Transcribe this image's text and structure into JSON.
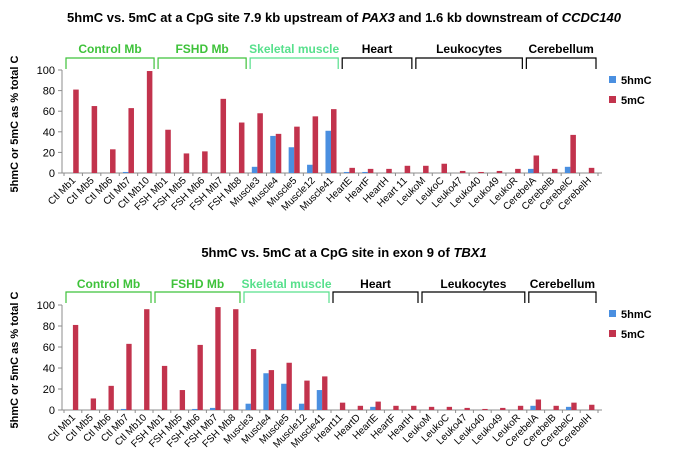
{
  "colors": {
    "h5mc": "#4a8fe0",
    "c5mc": "#c2334d",
    "axis": "#8c8c8c",
    "green_group": "#3ec23a",
    "light_green_group": "#57e08c",
    "black_group": "#000000"
  },
  "legend": {
    "h5mc": "5hmC",
    "c5mc": "5mC"
  },
  "chart_data": [
    {
      "type": "bar",
      "title": {
        "pre": "5hmC vs. 5mC at a CpG site 7.9 kb upstream  of ",
        "gene1": "PAX3",
        "mid": " and 1.6 kb downstream of ",
        "gene2": "CCDC140"
      },
      "ylabel": "5hmC or 5mC as % total C",
      "ylim": [
        0,
        100
      ],
      "yticks": [
        0,
        20,
        40,
        60,
        80,
        100
      ],
      "categories": [
        "Ctl Mb1",
        "Ctl Mb5",
        "Ctl Mb6",
        "Ctl Mb7",
        "Ctl Mb10",
        "FSH Mb1",
        "FSH Mb5",
        "FSH Mb6",
        "FSH Mb7",
        "FSH Mb8",
        "Muscle3",
        "Muscle4",
        "Muscle5",
        "Muscle12",
        "Muscle41",
        "HeartE",
        "HeartF",
        "HeartH",
        "Heart 11",
        "LeukoM",
        "LeukoC",
        "Leuko47",
        "Leuko40",
        "Leuko49",
        "LeukoR",
        "CerebelA",
        "CerebelB",
        "CerebelC",
        "CerebelH"
      ],
      "series": [
        {
          "name": "5hmC",
          "values": [
            0,
            0,
            0,
            1,
            0,
            0,
            0,
            0,
            0,
            0,
            6,
            36,
            25,
            8,
            41,
            1,
            1,
            0,
            0,
            0,
            0,
            0,
            0,
            0,
            0,
            4,
            0,
            6,
            0
          ]
        },
        {
          "name": "5mC",
          "values": [
            81,
            65,
            23,
            63,
            99,
            42,
            19,
            21,
            72,
            49,
            58,
            38,
            45,
            55,
            62,
            5,
            4,
            4,
            7,
            7,
            9,
            2,
            1,
            2,
            4,
            17,
            4,
            37,
            5
          ]
        }
      ],
      "groups": [
        {
          "label": "Control Mb",
          "color": "green",
          "from": 0,
          "to": 4
        },
        {
          "label": "FSHD Mb",
          "color": "green",
          "from": 5,
          "to": 9
        },
        {
          "label": "Skeletal muscle",
          "color": "light",
          "from": 10,
          "to": 14
        },
        {
          "label": "Heart",
          "color": "black",
          "from": 15,
          "to": 18
        },
        {
          "label": "Leukocytes",
          "color": "black",
          "from": 19,
          "to": 24
        },
        {
          "label": "Cerebellum",
          "color": "black",
          "from": 25,
          "to": 28
        }
      ]
    },
    {
      "type": "bar",
      "title": {
        "pre": "5hmC vs. 5mC at a CpG site in exon 9 of ",
        "gene1": "TBX1",
        "mid": "",
        "gene2": ""
      },
      "ylabel": "5hmC or 5mC as % total C",
      "ylim": [
        0,
        100
      ],
      "yticks": [
        0,
        20,
        40,
        60,
        80,
        100
      ],
      "categories": [
        "Ctl Mb1",
        "Ctl Mb5",
        "Ctl Mb6",
        "Ctl Mb7",
        "Ctl Mb10",
        "FSH Mb1",
        "FSH Mb5",
        "FSH Mb6",
        "FSH Mb7",
        "FSH Mb8",
        "Muscle3",
        "Muscle4",
        "Muscle5",
        "Muscle12",
        "Muscle41",
        "Heart11",
        "HeartD",
        "HeartE",
        "HeartF",
        "HeartH",
        "LeukoM",
        "LeukoC",
        "Leuko47",
        "Leuko40",
        "Leuko49",
        "LeukoR",
        "CerebelA",
        "CerebelB",
        "CerebelC",
        "CerebelH"
      ],
      "series": [
        {
          "name": "5hmC",
          "values": [
            0,
            0,
            0,
            1,
            0,
            0,
            0,
            1,
            2,
            0,
            6,
            35,
            25,
            6,
            19,
            0,
            0,
            3,
            0,
            0,
            0,
            0,
            0,
            0,
            0,
            0,
            4,
            0,
            3,
            0
          ]
        },
        {
          "name": "5mC",
          "values": [
            81,
            11,
            23,
            63,
            96,
            42,
            19,
            62,
            98,
            96,
            58,
            38,
            45,
            28,
            32,
            7,
            4,
            8,
            4,
            4,
            3,
            3,
            2,
            1,
            2,
            4,
            10,
            4,
            7,
            5
          ]
        }
      ],
      "groups": [
        {
          "label": "Control Mb",
          "color": "green",
          "from": 0,
          "to": 4
        },
        {
          "label": "FSHD Mb",
          "color": "green",
          "from": 5,
          "to": 9
        },
        {
          "label": "Skeletal muscle",
          "color": "light",
          "from": 10,
          "to": 14
        },
        {
          "label": "Heart",
          "color": "black",
          "from": 15,
          "to": 19
        },
        {
          "label": "Leukocytes",
          "color": "black",
          "from": 20,
          "to": 25
        },
        {
          "label": "Cerebellum",
          "color": "black",
          "from": 26,
          "to": 29
        }
      ]
    }
  ]
}
